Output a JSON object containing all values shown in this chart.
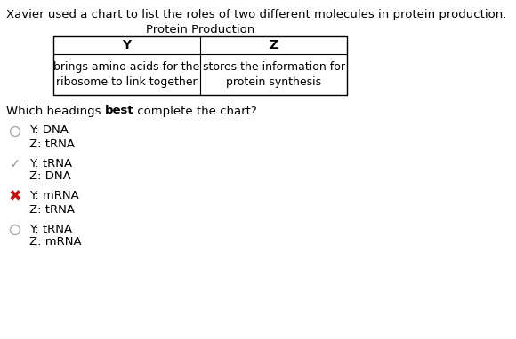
{
  "title_text": "Xavier used a chart to list the roles of two different molecules in protein production.",
  "table_title": "Protein Production",
  "col_headers": [
    "Y",
    "Z"
  ],
  "cell_contents": [
    "brings amino acids for the\nribosome to link together",
    "stores the information for\nprotein synthesis"
  ],
  "question_parts": [
    "Which headings ",
    "best",
    " complete the chart?"
  ],
  "options": [
    {
      "line1": "Y: DNA",
      "line2": "Z: tRNA",
      "marker": "circle",
      "marker_color": "#aaaaaa"
    },
    {
      "line1": "Y: tRNA",
      "line2": "Z: DNA",
      "marker": "check",
      "marker_color": "#999999"
    },
    {
      "line1": "Y: mRNA",
      "line2": "Z: tRNA",
      "marker": "cross",
      "marker_color": "#cc1111"
    },
    {
      "line1": "Y: tRNA",
      "line2": "Z: mRNA",
      "marker": "circle",
      "marker_color": "#aaaaaa"
    }
  ],
  "bg_color": "#ffffff",
  "text_color": "#000000"
}
